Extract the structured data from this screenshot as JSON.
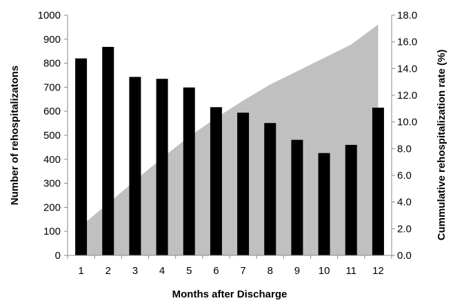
{
  "chart_data": {
    "type": "bar",
    "title": "",
    "xlabel": "Months after Discharge",
    "ylabel": "Number of rehospitalizatons",
    "y2label": "Cummulative rehospitalization rate (%)",
    "categories": [
      "1",
      "2",
      "3",
      "4",
      "5",
      "6",
      "7",
      "8",
      "9",
      "10",
      "11",
      "12"
    ],
    "ylim": [
      0,
      1000
    ],
    "yticks": [
      "0",
      "100",
      "200",
      "300",
      "400",
      "500",
      "600",
      "700",
      "800",
      "900",
      "1000"
    ],
    "y2lim": [
      0,
      18
    ],
    "y2ticks": [
      "0.0",
      "2.0",
      "4.0",
      "6.0",
      "8.0",
      "10.0",
      "12.0",
      "14.0",
      "16.0",
      "18.0"
    ],
    "grid": false,
    "legend": "none",
    "series": [
      {
        "type": "bar",
        "axis": "left",
        "color": "#000000",
        "values": [
          820,
          868,
          743,
          735,
          699,
          617,
          594,
          551,
          481,
          426,
          460,
          615
        ]
      },
      {
        "type": "area",
        "axis": "right",
        "color": "#c0c0c0",
        "values": [
          2.2,
          3.9,
          5.6,
          7.3,
          8.9,
          10.3,
          11.6,
          12.8,
          13.8,
          14.8,
          15.8,
          17.3
        ]
      }
    ]
  }
}
